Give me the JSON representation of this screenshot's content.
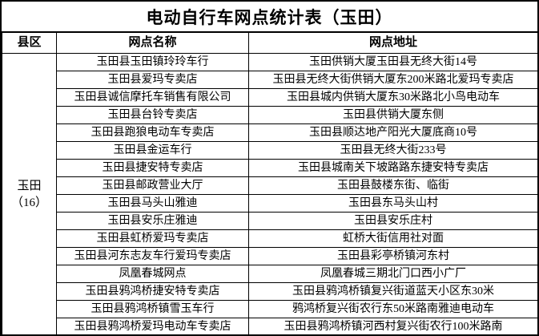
{
  "title": "电动自行车网点统计表（玉田）",
  "columns": [
    "县区",
    "网点名称",
    "网点地址"
  ],
  "county": {
    "name": "玉田",
    "count_label": "（16）"
  },
  "rows": [
    {
      "name": "玉田县玉田镇玲玲车行",
      "address": "玉田供销大厦玉田县无终大街14号"
    },
    {
      "name": "玉田县爱玛专卖店",
      "address": "玉田县无终大街供销大厦东200米路北爱玛专卖店"
    },
    {
      "name": "玉田县诚信摩托车销售有限公司",
      "address": "玉田县城内供销大厦东30米路北小鸟电动车"
    },
    {
      "name": "玉田县台铃专卖店",
      "address": "玉田县供销大厦东侧"
    },
    {
      "name": "玉田县跑狼电动车专卖店",
      "address": "玉田县顺达地产阳光大厦底商10号"
    },
    {
      "name": "玉田县金运车行",
      "address": "玉田县无终大街233号"
    },
    {
      "name": "玉田县捷安特专卖店",
      "address": "玉田县城南关下坡路路东捷安特专卖店"
    },
    {
      "name": "玉田县邮政营业大厅",
      "address": "玉田县鼓楼东街、临街"
    },
    {
      "name": "玉田县马头山雅迪",
      "address": "玉田县东马头山村"
    },
    {
      "name": "玉田县安乐庄雅迪",
      "address": "玉田县安乐庄村"
    },
    {
      "name": "玉田县虹桥爱玛专卖店",
      "address": "虹桥大街信用社对面"
    },
    {
      "name": "玉田县河东志友车行爱玛专卖店",
      "address": "玉田县彩亭桥镇河东村"
    },
    {
      "name": "凤凰春城网点",
      "address": "凤凰春城三期北门口西小广厂"
    },
    {
      "name": "玉田县鸦鸿桥捷安特专卖店",
      "address": "玉田县鸦鸿桥镇复兴街道蓝天小区东30米"
    },
    {
      "name": "玉田县鸦鸿桥镇雪玉车行",
      "address": "鸦鸿桥复兴街农行东50米路南雅迪电动车"
    },
    {
      "name": "玉田县鸦鸿桥爱玛电动车专卖店",
      "address": "玉田县鸦鸿桥镇河西村复兴街农行100米路南"
    }
  ],
  "colors": {
    "background": "#ffffff",
    "border": "#000000",
    "text": "#000000"
  }
}
